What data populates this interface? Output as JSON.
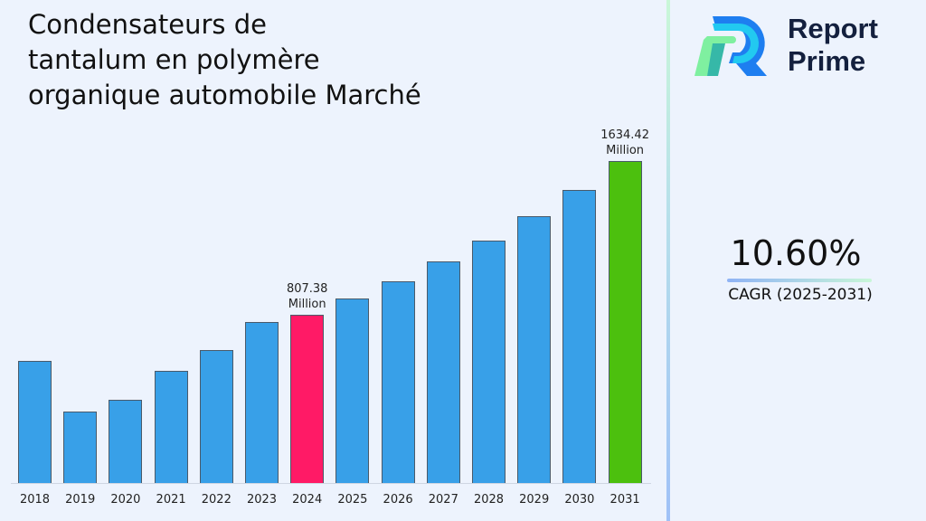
{
  "title": "Condensateurs de tantalum en polymère organique automobile Marché",
  "title_lines": [
    "Condensateurs de",
    "tantalum en polymère",
    "organique automobile Marché"
  ],
  "brand": {
    "line1": "Report",
    "line2": "Prime",
    "logo_icon": "report-prime-logo-icon"
  },
  "cagr": {
    "value": "10.60%",
    "label": "CAGR (2025-2031)"
  },
  "colors": {
    "bar": "#38a0e8",
    "highlight_2024": "#ff1a66",
    "highlight_2031": "#4cc00e",
    "text": "#111111",
    "brand_text": "#14203e"
  },
  "annotations": {
    "y2024": {
      "value": "807.38",
      "unit": "Million"
    },
    "y2031": {
      "value": "1634.42",
      "unit": "Million"
    }
  },
  "chart_data": {
    "type": "bar",
    "title": "Condensateurs de tantalum en polymère organique automobile Marché",
    "xlabel": "",
    "ylabel": "Million",
    "categories": [
      "2018",
      "2019",
      "2020",
      "2021",
      "2022",
      "2023",
      "2024",
      "2025",
      "2026",
      "2027",
      "2028",
      "2029",
      "2030",
      "2031"
    ],
    "values": [
      560,
      285,
      350,
      505,
      615,
      765,
      807.38,
      892.96,
      987.61,
      1092.3,
      1208.08,
      1336.14,
      1477.77,
      1634.42
    ],
    "bar_colors": [
      "#38a0e8",
      "#38a0e8",
      "#38a0e8",
      "#38a0e8",
      "#38a0e8",
      "#38a0e8",
      "#ff1a66",
      "#38a0e8",
      "#38a0e8",
      "#38a0e8",
      "#38a0e8",
      "#38a0e8",
      "#38a0e8",
      "#4cc00e"
    ],
    "data_labels": {
      "2024": "807.38 Million",
      "2031": "1634.42 Million"
    },
    "grid": false,
    "legend": "none",
    "cagr": "10.60% (2025-2031)"
  }
}
